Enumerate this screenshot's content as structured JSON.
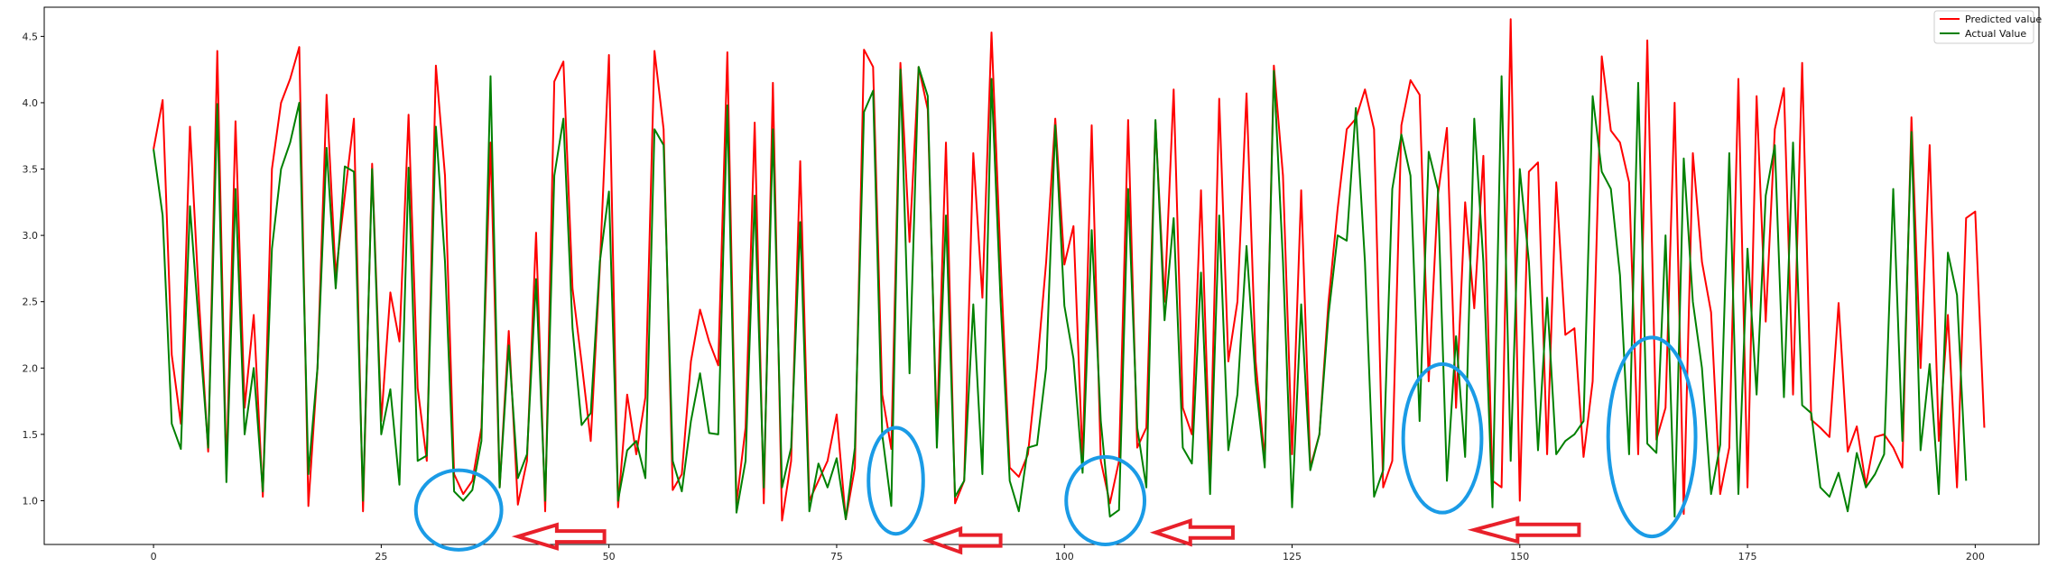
{
  "chart_data": {
    "type": "line",
    "x_range": [
      0,
      199
    ],
    "xlim": [
      -12,
      207
    ],
    "ylim": [
      0.67,
      4.72
    ],
    "xticks": [
      0,
      25,
      50,
      75,
      100,
      125,
      150,
      175,
      200
    ],
    "yticks": [
      1.0,
      1.5,
      2.0,
      2.5,
      3.0,
      3.5,
      4.0,
      4.5
    ],
    "legend": {
      "placement": "top-right"
    },
    "series": [
      {
        "name": "Predicted value",
        "color": "#ff0000",
        "values": [
          3.65,
          4.02,
          2.1,
          1.58,
          3.82,
          2.5,
          1.37,
          4.39,
          1.2,
          3.86,
          1.7,
          2.4,
          1.03,
          3.5,
          4.0,
          4.18,
          4.42,
          0.96,
          2.0,
          4.06,
          2.7,
          3.3,
          3.88,
          0.92,
          3.54,
          1.6,
          2.57,
          2.2,
          3.91,
          1.85,
          1.3,
          4.28,
          3.45,
          1.2,
          1.05,
          1.15,
          1.55,
          3.7,
          1.1,
          2.28,
          0.97,
          1.3,
          3.02,
          0.92,
          4.16,
          4.31,
          2.6,
          2.04,
          1.45,
          2.76,
          4.36,
          0.95,
          1.8,
          1.35,
          1.78,
          4.39,
          3.8,
          1.08,
          1.2,
          2.05,
          2.44,
          2.2,
          2.02,
          4.38,
          0.98,
          1.55,
          3.85,
          0.98,
          4.15,
          0.85,
          1.3,
          3.56,
          1.0,
          1.15,
          1.3,
          1.65,
          0.86,
          1.25,
          4.4,
          4.27,
          1.8,
          1.39,
          4.3,
          2.95,
          4.27,
          3.95,
          1.5,
          3.7,
          0.98,
          1.15,
          3.62,
          2.53,
          4.53,
          2.8,
          1.25,
          1.18,
          1.35,
          2.0,
          2.8,
          3.88,
          2.78,
          3.07,
          1.3,
          3.83,
          1.3,
          0.98,
          1.3,
          3.87,
          1.4,
          1.55,
          3.85,
          2.5,
          4.1,
          1.7,
          1.5,
          3.34,
          1.2,
          4.03,
          2.05,
          2.5,
          4.07,
          2.05,
          1.3,
          4.28,
          3.45,
          1.35,
          3.34,
          1.25,
          1.5,
          2.5,
          3.2,
          3.8,
          3.88,
          4.1,
          3.8,
          1.1,
          1.3,
          3.83,
          4.17,
          4.06,
          1.9,
          3.3,
          3.81,
          1.7,
          3.25,
          2.45,
          3.6,
          1.15,
          1.1,
          4.63,
          1.0,
          3.48,
          3.55,
          1.35,
          3.4,
          2.25,
          2.3,
          1.33,
          1.9,
          4.35,
          3.79,
          3.7,
          3.4,
          1.35,
          4.47,
          1.46,
          1.7,
          4.0,
          0.9,
          3.62,
          2.8,
          2.42,
          1.05,
          1.4,
          4.18,
          1.1,
          4.05,
          2.35,
          3.8,
          4.11,
          1.8,
          4.3,
          1.61,
          1.55,
          1.48,
          2.49,
          1.37,
          1.56,
          1.12,
          1.48,
          1.5,
          1.4,
          1.25,
          3.89,
          2.0,
          3.68,
          1.45,
          2.4,
          1.1,
          3.13,
          3.18,
          1.55
        ]
      },
      {
        "name": "Actual Value",
        "color": "#008000",
        "values": [
          3.65,
          3.15,
          1.58,
          1.39,
          3.22,
          2.3,
          1.4,
          3.99,
          1.14,
          3.35,
          1.5,
          2.0,
          1.07,
          2.9,
          3.5,
          3.7,
          4.0,
          1.2,
          2.0,
          3.66,
          2.6,
          3.52,
          3.48,
          1.0,
          3.5,
          1.5,
          1.84,
          1.12,
          3.51,
          1.3,
          1.34,
          3.82,
          2.8,
          1.07,
          1.0,
          1.08,
          1.45,
          4.2,
          1.1,
          2.17,
          1.17,
          1.35,
          2.67,
          1.0,
          3.45,
          3.88,
          2.3,
          1.57,
          1.66,
          2.8,
          3.33,
          1.0,
          1.38,
          1.45,
          1.17,
          3.8,
          3.68,
          1.3,
          1.07,
          1.6,
          1.96,
          1.51,
          1.5,
          3.98,
          0.91,
          1.3,
          3.3,
          1.1,
          3.8,
          1.1,
          1.4,
          3.1,
          0.92,
          1.28,
          1.1,
          1.32,
          0.86,
          1.4,
          3.93,
          4.09,
          1.5,
          0.96,
          4.25,
          1.96,
          4.27,
          4.05,
          1.4,
          3.15,
          1.03,
          1.15,
          2.48,
          1.2,
          4.18,
          2.5,
          1.15,
          0.92,
          1.4,
          1.42,
          2.0,
          3.83,
          2.47,
          2.07,
          1.21,
          3.04,
          1.6,
          0.88,
          0.93,
          3.35,
          1.55,
          1.1,
          3.87,
          2.36,
          3.13,
          1.4,
          1.28,
          2.72,
          1.05,
          3.15,
          1.38,
          1.8,
          2.92,
          1.9,
          1.25,
          4.24,
          2.8,
          0.95,
          2.48,
          1.23,
          1.5,
          2.4,
          3.0,
          2.96,
          3.96,
          2.8,
          1.03,
          1.23,
          3.35,
          3.76,
          3.45,
          1.6,
          3.63,
          3.35,
          1.15,
          2.24,
          1.33,
          3.88,
          2.8,
          0.95,
          4.2,
          1.3,
          3.5,
          2.8,
          1.38,
          2.53,
          1.35,
          1.45,
          1.5,
          1.6,
          4.05,
          3.48,
          3.35,
          2.7,
          1.35,
          4.15,
          1.43,
          1.36,
          3.0,
          0.88,
          3.58,
          2.5,
          2.0,
          1.05,
          1.42,
          3.62,
          1.05,
          2.9,
          1.8,
          3.3,
          3.68,
          1.78,
          3.7,
          1.72,
          1.66,
          1.1,
          1.03,
          1.21,
          0.92,
          1.36,
          1.1,
          1.2,
          1.35,
          3.35,
          1.45,
          3.78,
          1.38,
          2.03,
          1.05,
          2.87,
          2.55,
          1.15
        ]
      }
    ]
  },
  "annotations": {
    "ellipse_color": "#1a9be6",
    "arrow_color": "#e8202a",
    "ellipses": [
      {
        "x": 33.5,
        "y": 0.93,
        "rx": 4.7,
        "ry": 0.3
      },
      {
        "x": 81.5,
        "y": 1.15,
        "rx": 3.0,
        "ry": 0.4
      },
      {
        "x": 104.5,
        "y": 1.0,
        "rx": 4.3,
        "ry": 0.33
      },
      {
        "x": 141.5,
        "y": 1.47,
        "rx": 4.3,
        "ry": 0.56
      },
      {
        "x": 164.5,
        "y": 1.48,
        "rx": 4.8,
        "ry": 0.75
      }
    ],
    "arrows": [
      {
        "x_tip": 40,
        "x_tail": 49.5,
        "y": 0.73
      },
      {
        "x_tip": 85,
        "x_tail": 93,
        "y": 0.7
      },
      {
        "x_tip": 110,
        "x_tail": 118.5,
        "y": 0.76
      },
      {
        "x_tip": 145,
        "x_tail": 156.5,
        "y": 0.78
      }
    ]
  }
}
